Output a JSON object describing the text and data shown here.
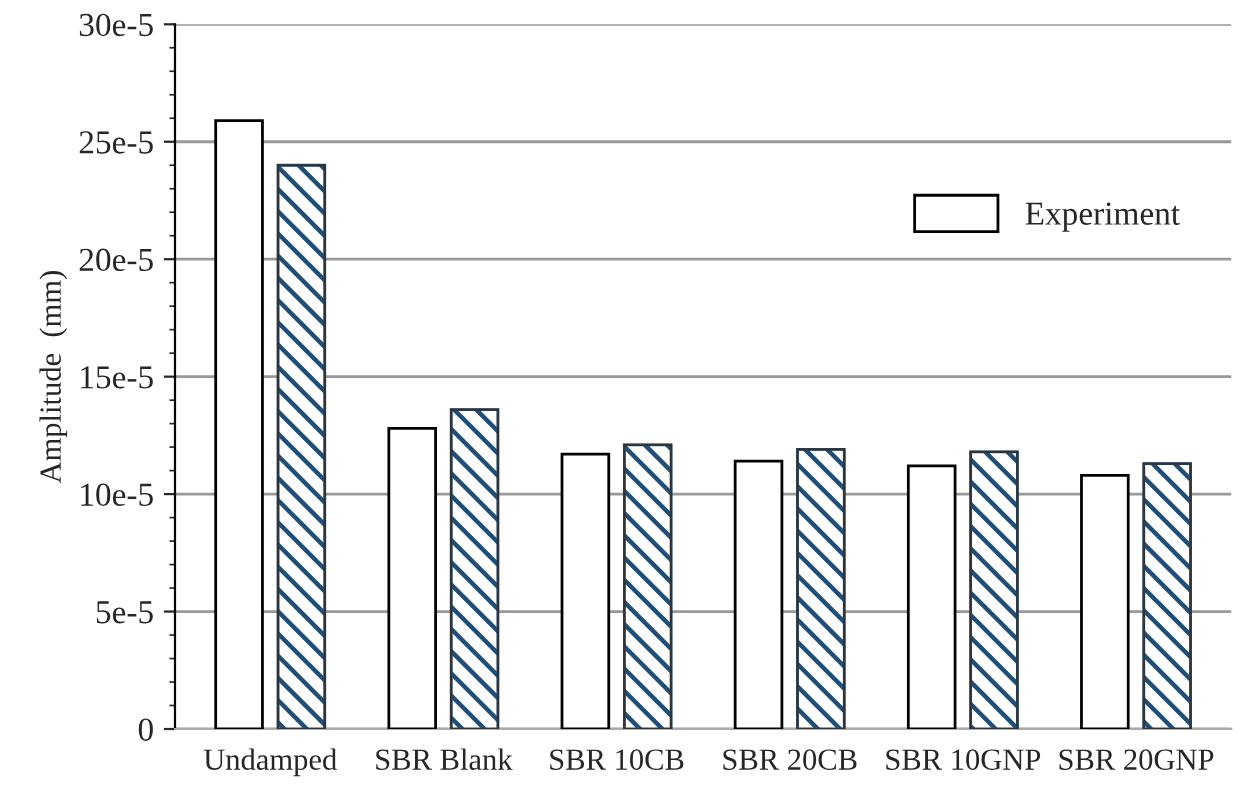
{
  "chart_data": {
    "type": "bar",
    "ylabel": "Amplitude  (mm)",
    "categories": [
      "Undamped",
      "SBR Blank",
      "SBR 10CB",
      "SBR 20CB",
      "SBR 10GNP",
      "SBR 20GNP"
    ],
    "series": [
      {
        "name": "Experiment",
        "color": "#ffffff",
        "values": [
          0.000259,
          0.000128,
          0.000117,
          0.000114,
          0.000112,
          0.000108
        ]
      },
      {
        "color": "#1f4e79",
        "values": [
          0.00024,
          0.000136,
          0.000121,
          0.000119,
          0.000118,
          0.000113
        ]
      }
    ],
    "ylim": [
      0,
      0.0003
    ],
    "yticks": [
      {
        "value": 0,
        "label": "0"
      },
      {
        "value": 5e-05,
        "label": "5e-5"
      },
      {
        "value": 0.0001,
        "label": "10e-5"
      },
      {
        "value": 0.00015,
        "label": "15e-5"
      },
      {
        "value": 0.0002,
        "label": "20e-5"
      },
      {
        "value": 0.00025,
        "label": "25e-5"
      },
      {
        "value": 0.0003,
        "label": "30e-5"
      }
    ],
    "grid": "y",
    "legend": "top right"
  }
}
